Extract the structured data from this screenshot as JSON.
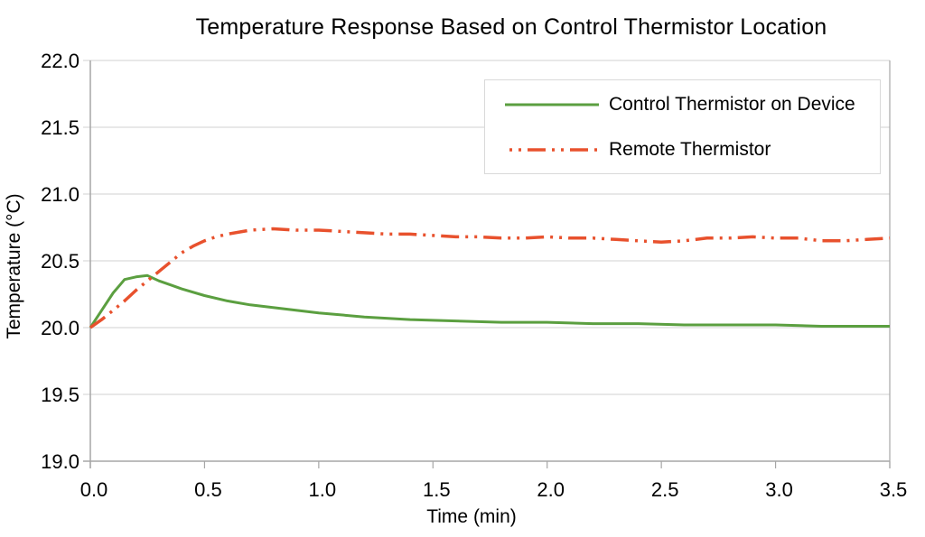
{
  "chart_data": {
    "type": "line",
    "title": "Temperature Response Based on Control Thermistor Location",
    "xlabel": "Time (min)",
    "ylabel": "Temperature (°C)",
    "xlim": [
      0.0,
      3.5
    ],
    "ylim": [
      19.0,
      22.0
    ],
    "x_ticks": [
      0.0,
      0.5,
      1.0,
      1.5,
      2.0,
      2.5,
      3.0,
      3.5
    ],
    "y_ticks": [
      19.0,
      19.5,
      20.0,
      20.5,
      21.0,
      21.5,
      22.0
    ],
    "tick_decimals": 1,
    "grid": "horizontal-only",
    "legend_position": "top-right",
    "colors": {
      "grid": "#d9d9d9",
      "axis": "#a6a6a6",
      "text": "#000000",
      "background": "#ffffff"
    },
    "series": [
      {
        "name": "Control Thermistor on Device",
        "color": "#5b9f40",
        "style": "solid",
        "x": [
          0.0,
          0.05,
          0.1,
          0.15,
          0.2,
          0.25,
          0.3,
          0.35,
          0.4,
          0.5,
          0.6,
          0.7,
          0.8,
          0.9,
          1.0,
          1.2,
          1.4,
          1.6,
          1.8,
          2.0,
          2.2,
          2.4,
          2.6,
          2.8,
          3.0,
          3.2,
          3.4,
          3.5
        ],
        "y": [
          20.0,
          20.13,
          20.26,
          20.36,
          20.38,
          20.39,
          20.35,
          20.32,
          20.29,
          20.24,
          20.2,
          20.17,
          20.15,
          20.13,
          20.11,
          20.08,
          20.06,
          20.05,
          20.04,
          20.04,
          20.03,
          20.03,
          20.02,
          20.02,
          20.02,
          20.01,
          20.01,
          20.01
        ]
      },
      {
        "name": "Remote Thermistor",
        "color": "#e8512d",
        "style": "dash-dot-dot",
        "x": [
          0.0,
          0.05,
          0.1,
          0.15,
          0.2,
          0.25,
          0.3,
          0.35,
          0.4,
          0.45,
          0.5,
          0.55,
          0.6,
          0.7,
          0.8,
          0.9,
          1.0,
          1.1,
          1.2,
          1.3,
          1.4,
          1.5,
          1.6,
          1.7,
          1.8,
          1.9,
          2.0,
          2.1,
          2.2,
          2.3,
          2.4,
          2.5,
          2.6,
          2.7,
          2.8,
          2.9,
          3.0,
          3.1,
          3.2,
          3.3,
          3.4,
          3.5
        ],
        "y": [
          20.0,
          20.06,
          20.13,
          20.2,
          20.28,
          20.35,
          20.42,
          20.49,
          20.56,
          20.61,
          20.65,
          20.68,
          20.7,
          20.73,
          20.74,
          20.73,
          20.73,
          20.72,
          20.71,
          20.7,
          20.7,
          20.69,
          20.68,
          20.68,
          20.67,
          20.67,
          20.68,
          20.67,
          20.67,
          20.66,
          20.65,
          20.64,
          20.65,
          20.67,
          20.67,
          20.68,
          20.67,
          20.67,
          20.65,
          20.65,
          20.66,
          20.67
        ]
      }
    ]
  }
}
